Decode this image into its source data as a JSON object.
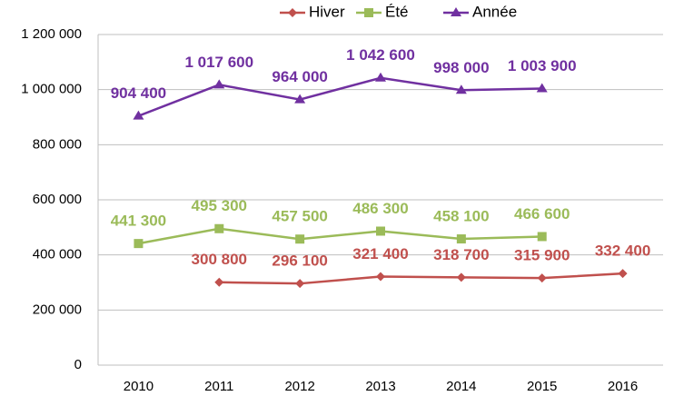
{
  "chart_data": {
    "type": "line",
    "categories": [
      "2010",
      "2011",
      "2012",
      "2013",
      "2014",
      "2015",
      "2016"
    ],
    "series": [
      {
        "name": "Hiver",
        "color": "#c0504d",
        "marker": "diamond",
        "values": [
          null,
          300800,
          296100,
          321400,
          318700,
          315900,
          332400
        ],
        "value_labels": [
          null,
          "300 800",
          "296 100",
          "321 400",
          "318 700",
          "315 900",
          "332 400"
        ]
      },
      {
        "name": "Été",
        "color": "#9bbb59",
        "marker": "square",
        "values": [
          441300,
          495300,
          457500,
          486300,
          458100,
          466600,
          null
        ],
        "value_labels": [
          "441 300",
          "495 300",
          "457 500",
          "486 300",
          "458 100",
          "466 600",
          null
        ]
      },
      {
        "name": "Année",
        "color": "#7030a0",
        "marker": "triangle",
        "values": [
          904400,
          1017600,
          964000,
          1042600,
          998000,
          1003900,
          null
        ],
        "value_labels": [
          "904 400",
          "1 017 600",
          "964 000",
          "1 042 600",
          "998 000",
          "1 003 900",
          null
        ]
      }
    ],
    "ylim": [
      0,
      1200000
    ],
    "yticks": [
      0,
      {
        "value": 200000,
        "label": "200 000"
      },
      {
        "value": 400000,
        "label": "400 000"
      },
      {
        "value": 600000,
        "label": "600 000"
      },
      {
        "value": 800000,
        "label": "800 000"
      },
      {
        "value": 1000000,
        "label": "1 000 000"
      },
      {
        "value": 1200000,
        "label": "1 200 000"
      }
    ],
    "grid": true,
    "legend": "top"
  }
}
